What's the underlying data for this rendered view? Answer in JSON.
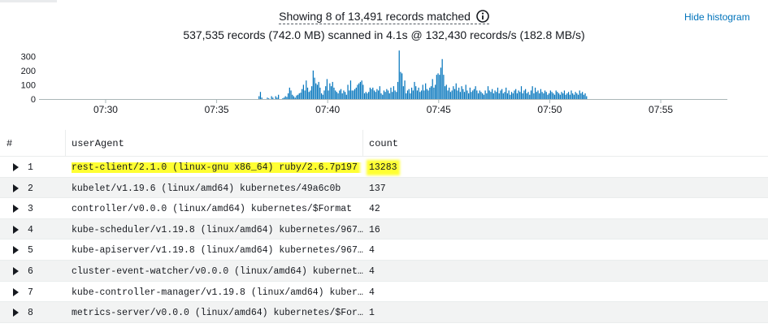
{
  "summary": {
    "matched": "Showing 8 of 13,491 records matched",
    "scanned": "537,535 records (742.0 MB) scanned in 4.1s @ 132,430 records/s (182.8 MB/s)"
  },
  "hide_histogram_label": "Hide histogram",
  "colors": {
    "bar": "#0073bb",
    "link": "#0073bb",
    "highlight": "#ffff33"
  },
  "chart_data": {
    "type": "bar",
    "ylim": [
      0,
      330
    ],
    "y_ticks": [
      "300",
      "200",
      "100",
      "0"
    ],
    "y_tick_values": [
      300,
      200,
      100,
      0
    ],
    "x_tick_labels": [
      "07:30",
      "07:35",
      "07:40",
      "07:45",
      "07:50",
      "07:55"
    ],
    "x_tick_values": [
      3,
      8,
      13,
      18,
      23,
      28
    ],
    "x_range": [
      0,
      31
    ],
    "bin_minutes": 0.0625,
    "bar_start_minute": 9.7,
    "values": [
      0,
      0,
      0,
      20,
      50,
      10,
      0,
      0,
      0,
      10,
      5,
      0,
      20,
      10,
      0,
      20,
      10,
      30,
      0,
      0,
      5,
      10,
      20,
      15,
      40,
      80,
      60,
      30,
      20,
      10,
      25,
      30,
      40,
      45,
      70,
      100,
      60,
      130,
      80,
      50,
      60,
      90,
      200,
      150,
      110,
      100,
      120,
      80,
      40,
      30,
      60,
      90,
      140,
      60,
      110,
      90,
      120,
      80,
      60,
      50,
      40,
      60,
      70,
      40,
      60,
      50,
      30,
      100,
      60,
      130,
      60,
      60,
      70,
      80,
      100,
      110,
      120,
      130,
      100,
      40,
      50,
      40,
      50,
      80,
      70,
      80,
      60,
      50,
      70,
      60,
      90,
      40,
      30,
      60,
      50,
      70,
      60,
      40,
      80,
      50,
      90,
      60,
      50,
      120,
      340,
      190,
      180,
      90,
      130,
      40,
      60,
      70,
      40,
      80,
      60,
      120,
      90,
      60,
      80,
      50,
      60,
      100,
      60,
      110,
      70,
      60,
      80,
      90,
      140,
      80,
      100,
      170,
      180,
      170,
      220,
      280,
      170,
      90,
      100,
      60,
      80,
      50,
      60,
      90,
      70,
      110,
      60,
      80,
      50,
      90,
      70,
      50,
      100,
      60,
      40,
      80,
      50,
      60,
      70,
      90,
      60,
      40,
      60,
      50,
      40,
      30,
      60,
      40,
      90,
      60,
      50,
      70,
      40,
      60,
      50,
      80,
      40,
      60,
      70,
      40,
      50,
      80,
      40,
      60,
      30,
      50,
      40,
      60,
      70,
      40,
      60,
      50,
      90,
      40,
      60,
      70,
      40,
      50,
      30,
      60,
      90,
      40,
      80,
      50,
      60,
      40,
      70,
      50,
      40,
      60,
      50,
      30,
      40,
      60,
      50,
      40,
      30,
      60,
      50,
      40,
      30,
      50,
      40,
      60,
      30,
      40,
      50,
      30,
      60,
      40,
      30,
      50,
      40,
      30,
      60,
      40,
      50,
      30,
      40,
      20
    ]
  },
  "table": {
    "headers": {
      "num": "#",
      "useragent": "userAgent",
      "count": "count"
    },
    "rows": [
      {
        "num": "1",
        "useragent": "rest-client/2.1.0 (linux-gnu x86_64) ruby/2.6.7p197",
        "count": "13283"
      },
      {
        "num": "2",
        "useragent": "kubelet/v1.19.6 (linux/amd64) kubernetes/49a6c0b",
        "count": "137"
      },
      {
        "num": "3",
        "useragent": "controller/v0.0.0 (linux/amd64) kubernetes/$Format",
        "count": "42"
      },
      {
        "num": "4",
        "useragent": "kube-scheduler/v1.19.8 (linux/amd64) kubernetes/96780…",
        "count": "16"
      },
      {
        "num": "5",
        "useragent": "kube-apiserver/v1.19.8 (linux/amd64) kubernetes/96780…",
        "count": "4"
      },
      {
        "num": "6",
        "useragent": "cluster-event-watcher/v0.0.0 (linux/amd64) kubernetes…",
        "count": "4"
      },
      {
        "num": "7",
        "useragent": "kube-controller-manager/v1.19.8 (linux/amd64) kuberne…",
        "count": "4"
      },
      {
        "num": "8",
        "useragent": "metrics-server/v0.0.0 (linux/amd64) kubernetes/$Format",
        "count": "1"
      }
    ]
  }
}
